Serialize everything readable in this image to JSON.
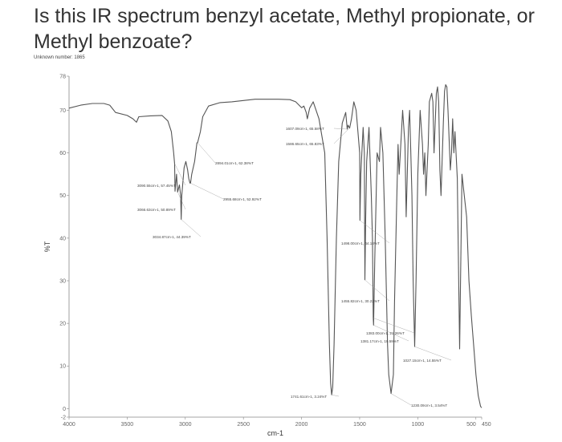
{
  "question": "Is this IR spectrum benzyl acetate, Methyl propionate, or Methyl benzoate?",
  "unknown_label": "Unknown number: 1865",
  "chart_data": {
    "type": "line",
    "title": "",
    "xlabel": "cm-1",
    "ylabel": "%T",
    "xlim": [
      4000,
      450
    ],
    "ylim": [
      -2,
      78
    ],
    "x_reversed": true,
    "grid": false,
    "legend": "none",
    "line_color": "#555555",
    "x_ticks": [
      {
        "value": 4000,
        "label": "4000"
      },
      {
        "value": 3500,
        "label": "3500"
      },
      {
        "value": 3000,
        "label": "3000"
      },
      {
        "value": 2500,
        "label": "2500"
      },
      {
        "value": 2000,
        "label": "2000"
      },
      {
        "value": 1500,
        "label": "1500"
      },
      {
        "value": 1000,
        "label": "1000"
      },
      {
        "value": 500,
        "label": "500"
      },
      {
        "value": 450,
        "label": "450"
      }
    ],
    "y_ticks": [
      {
        "value": 78,
        "label": "78"
      },
      {
        "value": 70,
        "label": "70"
      },
      {
        "value": 60,
        "label": "60"
      },
      {
        "value": 50,
        "label": "50"
      },
      {
        "value": 40,
        "label": "40"
      },
      {
        "value": 30,
        "label": "30"
      },
      {
        "value": 20,
        "label": "20"
      },
      {
        "value": 10,
        "label": "10"
      },
      {
        "value": 0,
        "label": "0"
      },
      {
        "value": -2,
        "label": "-2"
      }
    ],
    "series": [
      {
        "x": [
          4000,
          3900,
          3800,
          3700,
          3650,
          3600,
          3500,
          3450,
          3420,
          3400,
          3300,
          3200,
          3150,
          3120,
          3100,
          3092,
          3088,
          3075,
          3066,
          3050,
          3040,
          3035,
          3030,
          3010,
          2995,
          2980,
          2970,
          2960,
          2955,
          2945,
          2920,
          2900,
          2894,
          2870,
          2850,
          2800,
          2700,
          2600,
          2500,
          2400,
          2300,
          2200,
          2100,
          2050,
          2000,
          1980,
          1960,
          1950,
          1930,
          1900,
          1850,
          1800,
          1780,
          1760,
          1750,
          1741,
          1732,
          1720,
          1700,
          1680,
          1650,
          1620,
          1607,
          1600,
          1586,
          1570,
          1550,
          1530,
          1500,
          1498,
          1490,
          1470,
          1460,
          1455,
          1448,
          1440,
          1420,
          1400,
          1390,
          1383,
          1380,
          1370,
          1350,
          1330,
          1320,
          1300,
          1280,
          1260,
          1250,
          1230,
          1210,
          1200,
          1180,
          1170,
          1160,
          1140,
          1130,
          1110,
          1100,
          1080,
          1070,
          1060,
          1050,
          1040,
          1027,
          1015,
          1000,
          980,
          960,
          950,
          940,
          930,
          910,
          900,
          880,
          870,
          860,
          840,
          830,
          820,
          810,
          800,
          780,
          770,
          760,
          750,
          740,
          720,
          710,
          700,
          690,
          680,
          660,
          640,
          620,
          600,
          580,
          560,
          540,
          520,
          500,
          480,
          460,
          450
        ],
        "y": [
          70.5,
          71.2,
          71.6,
          71.6,
          71.2,
          69.5,
          68.8,
          68.0,
          67.2,
          68.5,
          68.7,
          68.8,
          67.5,
          65.0,
          60.0,
          57.4,
          51.0,
          55.0,
          50.8,
          52.5,
          50.0,
          44.4,
          50.0,
          56.5,
          58.0,
          56.0,
          54.0,
          52.92,
          52.9,
          55.0,
          58.0,
          62.38,
          62.4,
          65.0,
          68.5,
          71.0,
          71.8,
          72.0,
          72.3,
          72.6,
          72.6,
          72.6,
          72.5,
          72.0,
          70.6,
          71.0,
          69.5,
          68.0,
          70.5,
          72.0,
          68.0,
          60.0,
          40.0,
          15.0,
          6.0,
          3.24,
          5.0,
          15.0,
          40.0,
          58.0,
          67.0,
          69.5,
          65.58,
          66.5,
          65.83,
          68.0,
          72.0,
          70.0,
          60.0,
          44.18,
          55.0,
          66.0,
          60.0,
          30.22,
          45.0,
          58.0,
          66.0,
          50.0,
          40.0,
          21.26,
          19.59,
          35.0,
          60.0,
          58.0,
          66.0,
          60.0,
          40.0,
          15.0,
          8.0,
          3.54,
          8.0,
          25.0,
          50.0,
          62.0,
          55.0,
          65.0,
          70.0,
          62.0,
          45.0,
          66.0,
          70.0,
          60.0,
          50.0,
          30.0,
          14.55,
          30.0,
          55.0,
          70.0,
          62.0,
          55.0,
          60.0,
          50.0,
          62.0,
          72.0,
          74.0,
          72.0,
          60.0,
          74.0,
          75.5,
          72.0,
          56.0,
          50.0,
          67.0,
          74.5,
          76.0,
          75.5,
          70.0,
          56.0,
          60.0,
          68.0,
          60.0,
          65.0,
          54.0,
          14.0,
          55.0,
          50.0,
          45.0,
          30.0,
          22.0,
          15.0,
          8.0,
          3.0,
          0.5,
          0.2
        ]
      }
    ],
    "annotations": [
      {
        "text": "1607.09cm-1, 65.58%T",
        "x": 1607,
        "y": 65.58
      },
      {
        "text": "1586.65cm-1, 65.83%T",
        "x": 1586.65,
        "y": 65.83
      },
      {
        "text": "2894.01cm-1, 62.38%T",
        "x": 2894.01,
        "y": 62.38
      },
      {
        "text": "3090.55cm-1, 57.45%T",
        "x": 3090.55,
        "y": 57.45
      },
      {
        "text": "2955.68cm-1, 52.92%T",
        "x": 2955.68,
        "y": 52.92
      },
      {
        "text": "3066.63cm-1, 50.89%T",
        "x": 3066.63,
        "y": 50.89
      },
      {
        "text": "3034.87cm-1, 44.39%T",
        "x": 3034.87,
        "y": 44.39
      },
      {
        "text": "1498.00cm-1, 44.18%T",
        "x": 1498.0,
        "y": 44.18
      },
      {
        "text": "1455.82cm-1, 30.22%T",
        "x": 1455.82,
        "y": 30.22
      },
      {
        "text": "1383.00cm-1, 21.26%T",
        "x": 1383.0,
        "y": 21.26
      },
      {
        "text": "1381.17cm-1, 19.59%T",
        "x": 1381.17,
        "y": 19.59
      },
      {
        "text": "1027.15cm-1, 14.55%T",
        "x": 1027.15,
        "y": 14.55
      },
      {
        "text": "1741.61cm-1, 3.24%T",
        "x": 1741.61,
        "y": 3.24
      },
      {
        "text": "1230.09cm-1, 3.54%T",
        "x": 1230.09,
        "y": 3.54
      }
    ]
  }
}
